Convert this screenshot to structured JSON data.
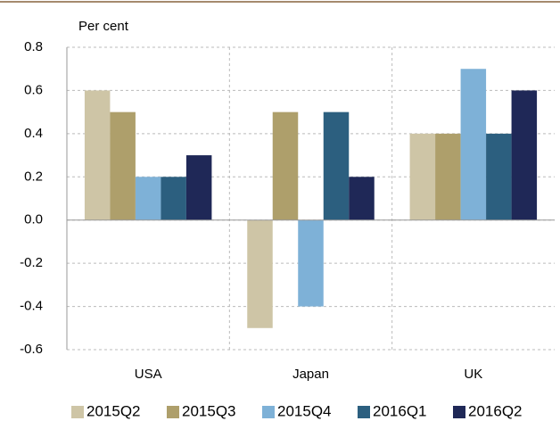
{
  "chart_data": {
    "type": "bar",
    "y_axis_label": "Per cent",
    "categories": [
      "USA",
      "Japan",
      "UK"
    ],
    "series": [
      {
        "name": "2015Q2",
        "color": "#cec5a6",
        "values": [
          0.6,
          -0.5,
          0.4
        ]
      },
      {
        "name": "2015Q3",
        "color": "#ae9f6b",
        "values": [
          0.5,
          0.5,
          0.4
        ]
      },
      {
        "name": "2015Q4",
        "color": "#7eb1d7",
        "values": [
          0.2,
          -0.4,
          0.7
        ]
      },
      {
        "name": "2016Q1",
        "color": "#2c5f7f",
        "values": [
          0.2,
          0.5,
          0.4
        ]
      },
      {
        "name": "2016Q2",
        "color": "#1f2857",
        "values": [
          0.3,
          0.2,
          0.6
        ]
      }
    ],
    "ylim": [
      -0.6,
      0.8
    ],
    "yticks": [
      -0.6,
      -0.4,
      -0.2,
      {
        "value": 0,
        "label": "0.0"
      },
      0.2,
      0.4,
      0.6,
      0.8
    ],
    "grid": true,
    "legend": "bottom"
  }
}
